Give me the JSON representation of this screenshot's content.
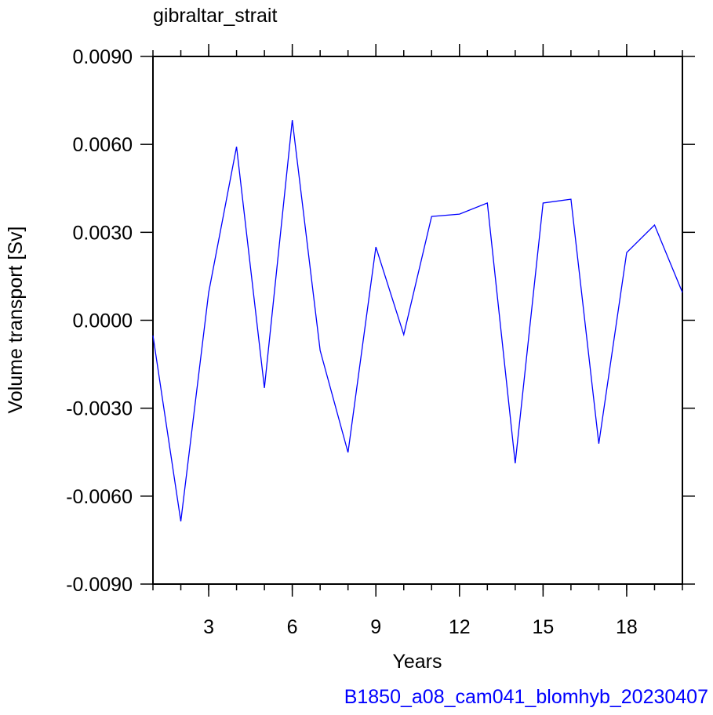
{
  "chart_data": {
    "type": "line",
    "title": "gibraltar_strait",
    "subtitle": "B1850_a08_cam041_blomhyb_20230407",
    "x_label": "Years",
    "y_label": "Volume transport [Sv]",
    "x": [
      1,
      2,
      3,
      4,
      5,
      6,
      7,
      8,
      9,
      10,
      11,
      12,
      13,
      14,
      15,
      16,
      17,
      18,
      19,
      20
    ],
    "series": [
      {
        "name": "gibraltar_strait",
        "color": "#0000ff",
        "values": [
          -0.00052,
          -0.00686,
          0.00095,
          0.00592,
          -0.00231,
          0.00683,
          -0.00103,
          -0.00451,
          0.0025,
          -0.00049,
          0.00354,
          0.00362,
          0.004,
          -0.00488,
          0.004,
          0.00413,
          -0.00421,
          0.00231,
          0.00325,
          0.00095
        ]
      }
    ],
    "xlim": [
      1,
      20
    ],
    "xticks": [
      3,
      6,
      9,
      12,
      15,
      18
    ],
    "ylim": [
      -0.009,
      0.009
    ],
    "yticks": [
      {
        "value": -0.009,
        "label": "-0.0090"
      },
      {
        "value": -0.006,
        "label": "-0.0060"
      },
      {
        "value": -0.003,
        "label": "-0.0030"
      },
      {
        "value": 0,
        "label": "0.0000"
      },
      {
        "value": 0.003,
        "label": "0.0030"
      },
      {
        "value": 0.006,
        "label": "0.0060"
      },
      {
        "value": 0.009,
        "label": "0.0090"
      }
    ],
    "grid": false
  }
}
